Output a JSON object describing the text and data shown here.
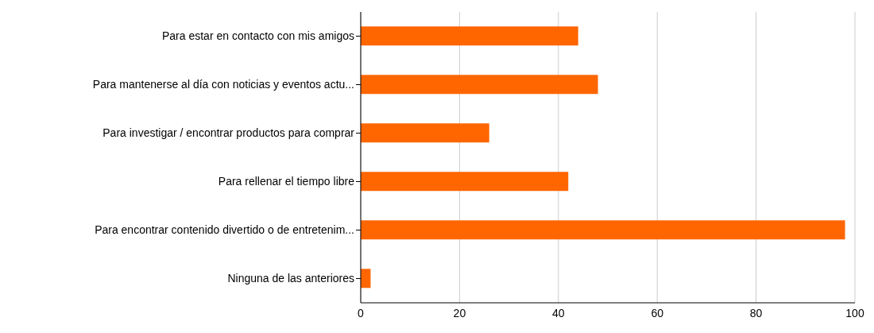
{
  "chart_data": {
    "type": "bar",
    "orientation": "horizontal",
    "categories": [
      "Para estar en contacto con mis amigos",
      "Para mantenerse al día con noticias y eventos actu...",
      "Para investigar / encontrar productos para comprar",
      "Para rellenar el tiempo libre",
      "Para encontrar contenido divertido o de entretenim...",
      "Ninguna de las anteriores"
    ],
    "values": [
      44,
      48,
      26,
      42,
      98,
      2
    ],
    "color": "#ff6600",
    "xlim": [
      0,
      100
    ],
    "xticks": [
      0,
      20,
      40,
      60,
      80,
      100
    ],
    "grid": "x"
  }
}
